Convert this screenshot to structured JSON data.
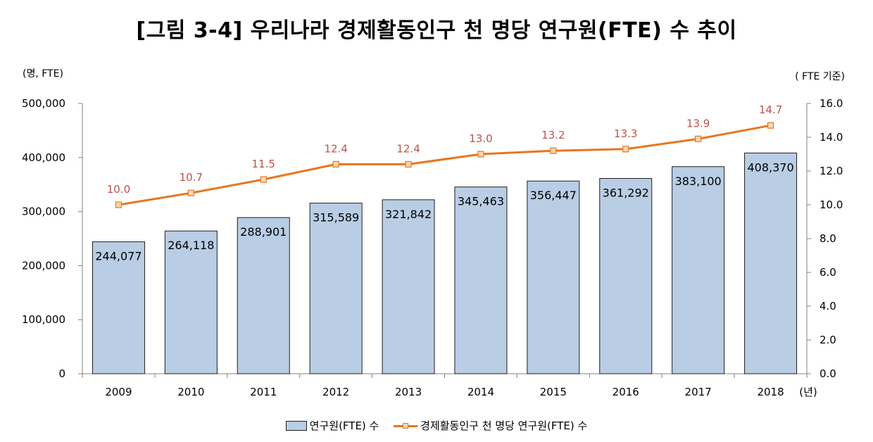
{
  "title": "[그림 3-4] 우리나라 경제활동인구 천 명당 연구원(FTE) 수 추이",
  "legend": {
    "bar_label": "연구원(FTE) 수",
    "line_label": "경제활동인구 천 명당 연구원(FTE) 수"
  },
  "chart_data": {
    "type": "bar",
    "categories": [
      "2009",
      "2010",
      "2011",
      "2012",
      "2013",
      "2014",
      "2015",
      "2016",
      "2017",
      "2018"
    ],
    "x_unit": "(년)",
    "y_left_unit": "(명, FTE)",
    "y_right_unit": "( FTE 기준)",
    "ylim_left": [
      0,
      500000
    ],
    "ylim_right": [
      0,
      16
    ],
    "yticks_left": [
      "0",
      "100,000",
      "200,000",
      "300,000",
      "400,000",
      "500,000"
    ],
    "yticks_right": [
      "0.0",
      "2.0",
      "4.0",
      "6.0",
      "8.0",
      "10.0",
      "12.0",
      "14.0",
      "16.0"
    ],
    "series": [
      {
        "name": "연구원(FTE) 수",
        "type": "bar",
        "axis": "left",
        "values": [
          244077,
          264118,
          288901,
          315589,
          321842,
          345463,
          356447,
          361292,
          383100,
          408370
        ],
        "labels": [
          "244,077",
          "264,118",
          "288,901",
          "315,589",
          "321,842",
          "345,463",
          "356,447",
          "361,292",
          "383,100",
          "408,370"
        ],
        "color": "#b9cde5"
      },
      {
        "name": "경제활동인구 천 명당 연구원(FTE) 수",
        "type": "line",
        "axis": "right",
        "values": [
          10.0,
          10.7,
          11.5,
          12.4,
          12.4,
          13.0,
          13.2,
          13.3,
          13.9,
          14.7
        ],
        "labels": [
          "10.0",
          "10.7",
          "11.5",
          "12.4",
          "12.4",
          "13.0",
          "13.2",
          "13.3",
          "13.9",
          "14.7"
        ],
        "color": "#e8761f",
        "label_color": "#c0504d"
      }
    ],
    "grid": false,
    "legend_position": "bottom"
  }
}
